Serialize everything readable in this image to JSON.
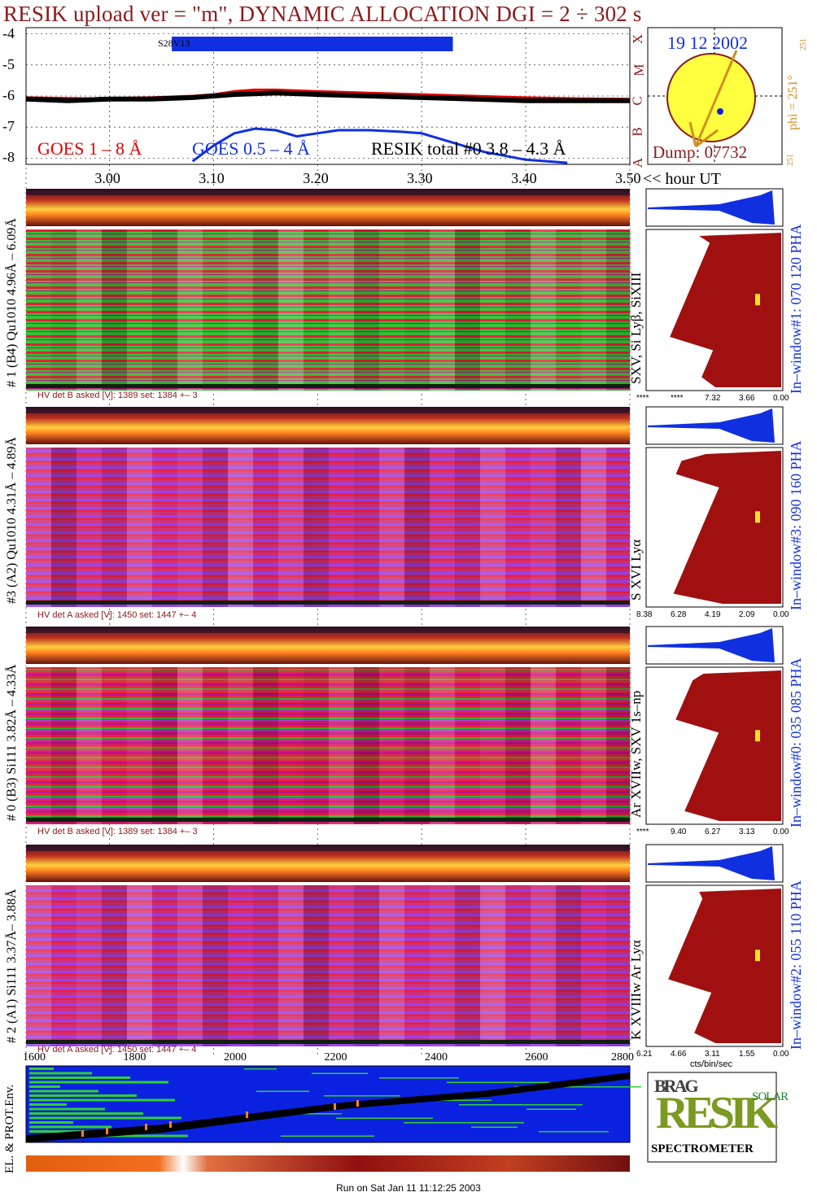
{
  "title": "RESIK upload ver = \"m\", DYNAMIC ALLOCATION  DGI =   2 ÷ 302 s",
  "footer": "Run on Sat Jan 11 11:12:25 2003",
  "colors": {
    "goes_long": "#e00000",
    "goes_short": "#1030e0",
    "resik": "#000000",
    "dark_red": "#8b1a1a",
    "panel_bg": "#2030e0"
  },
  "chart_data": [
    {
      "type": "line",
      "name": "lightcurves",
      "ylabel": "",
      "ylim": [
        -8.2,
        -3.8
      ],
      "yticks": [
        "-4",
        "-5",
        "-6",
        "-7",
        "-8"
      ],
      "xlim": [
        2.92,
        3.5
      ],
      "xticks": [
        "3.00",
        "3.10",
        "3.20",
        "3.30",
        "3.40",
        "3.50"
      ],
      "xunit": "<< hour UT",
      "right_letters": [
        "X",
        "M",
        "C",
        "B",
        "A"
      ],
      "bar_label": "S28V13",
      "bar_range": [
        3.06,
        3.33
      ],
      "legend": [
        "GOES 1 – 8 Å",
        "GOES 0.5 – 4 Å",
        "RESIK total #0  3.8 – 4.3 Å"
      ],
      "series": [
        {
          "name": "GOES 1 – 8 Å",
          "x": [
            2.92,
            2.98,
            3.04,
            3.08,
            3.1,
            3.12,
            3.14,
            3.16,
            3.2,
            3.25,
            3.3,
            3.35,
            3.4,
            3.45,
            3.5
          ],
          "values": [
            -6.05,
            -6.08,
            -6.05,
            -6.0,
            -5.95,
            -5.85,
            -5.8,
            -5.8,
            -5.85,
            -5.9,
            -5.95,
            -6.0,
            -6.05,
            -6.08,
            -6.1
          ]
        },
        {
          "name": "GOES 0.5 – 4 Å",
          "x": [
            3.08,
            3.1,
            3.12,
            3.14,
            3.16,
            3.18,
            3.2,
            3.22,
            3.25,
            3.28,
            3.3,
            3.33,
            3.36,
            3.4,
            3.44
          ],
          "values": [
            -8.1,
            -7.6,
            -7.2,
            -7.05,
            -7.1,
            -7.3,
            -7.2,
            -7.1,
            -7.1,
            -7.15,
            -7.2,
            -7.5,
            -7.8,
            -8.05,
            -8.15
          ]
        },
        {
          "name": "RESIK total #0  3.8 – 4.3 Å",
          "x": [
            2.92,
            2.96,
            3.0,
            3.04,
            3.08,
            3.12,
            3.16,
            3.2,
            3.25,
            3.3,
            3.35,
            3.4,
            3.45,
            3.5
          ],
          "values": [
            -6.1,
            -6.15,
            -6.1,
            -6.1,
            -6.05,
            -5.95,
            -5.9,
            -5.95,
            -6.0,
            -6.05,
            -6.1,
            -6.15,
            -6.15,
            -6.15
          ]
        }
      ]
    }
  ],
  "sun": {
    "date": "19 12 2002",
    "dump": "Dump: 07732",
    "phi_label": "phi = 251°",
    "phi_top": "251",
    "phi_bottom": "251"
  },
  "panels": [
    {
      "id": "p1",
      "label": "# 1 (B4) Qu1010 4.96Å – 6.09Å",
      "lines": "SXV, Si Lyβ, SiXIII",
      "hv": "HV det B asked [V]:  1389 set:  1384 +–   3",
      "window": "In–window#1:  070 120 PHA",
      "pha_ticks": [
        "****",
        "****",
        "7.32",
        "3.66",
        "0.00"
      ],
      "hv_y": 486,
      "spec_top": 232,
      "spec_h": 250,
      "pha_fill": 0.85
    },
    {
      "id": "p2",
      "label": "#3 (A2) Qu1010  4.31Å – 4.89Å",
      "lines": "S XVI Lyα",
      "hv": "HV det A asked [V]:  1450 set:  1447 +–   4",
      "window": "In–window#3:  090 160 PHA",
      "pha_ticks": [
        "8.38",
        "6.28",
        "4.19",
        "2.09",
        "0.00"
      ],
      "hv_y": 756,
      "spec_top": 500,
      "spec_h": 248,
      "pha_fill": 0.8
    },
    {
      "id": "p3",
      "label": "# 0 (B3) Si111  3.82Å – 4.33Å",
      "lines": "Ar XVIIw,  SXV 1s–np",
      "hv": "HV det B asked [V]:  1389 set:  1384 +–   3",
      "window": "In–window#0:  035 085 PHA",
      "pha_ticks": [
        "****",
        "9.40",
        "6.27",
        "3.13",
        "0.00"
      ],
      "hv_y": 1022,
      "spec_top": 770,
      "spec_h": 245,
      "pha_fill": 0.82
    },
    {
      "id": "p4",
      "label": "# 2 (A1) Si111  3.37Å–  3.88Å",
      "lines": "K XVIIIw  Ar Lyα",
      "hv": "HV det A asked [V]:  1450 set:  1447 +–   4",
      "window": "In–window#2:  055 110 PHA",
      "pha_ticks": [
        "6.21",
        "4.66",
        "3.11",
        "1.55",
        "0.00"
      ],
      "hv_y": 1290,
      "spec_top": 1038,
      "spec_h": 250,
      "pha_fill": 0.85
    }
  ],
  "orbit": {
    "label": "EL. & PROT.Env.",
    "xticks": [
      "1600",
      "1800",
      "2000",
      "2200",
      "2400",
      "2600",
      "2800"
    ],
    "pha_unit": "cts/bin/sec"
  },
  "logo": {
    "letters_top": "BRAG",
    "letters_mid": "RESIK",
    "letters_side": "SOLAR",
    "caption": "SPECTROMETER"
  }
}
